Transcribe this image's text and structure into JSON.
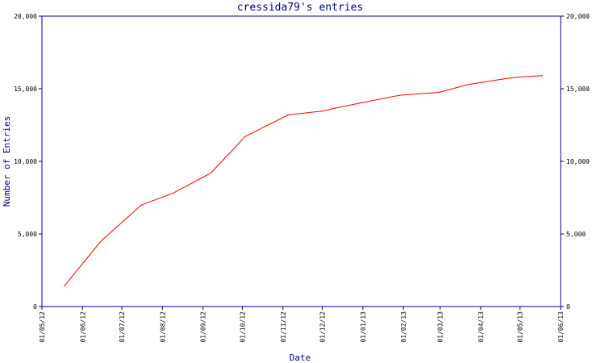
{
  "chart_data": {
    "type": "line",
    "title": "cressida79's entries",
    "xlabel": "Date",
    "ylabel": "Number of Entries",
    "x_tick_labels": [
      "01/05/12",
      "01/06/12",
      "01/07/12",
      "01/08/12",
      "01/09/12",
      "01/10/12",
      "01/11/12",
      "01/12/12",
      "01/01/13",
      "01/02/13",
      "01/03/13",
      "01/04/13",
      "01/05/13",
      "01/06/13"
    ],
    "y_tick_labels": [
      "0",
      "5,000",
      "10,000",
      "15,000",
      "20,000"
    ],
    "ylim": [
      0,
      20000
    ],
    "xlim": [
      "2012-05-01",
      "2013-06-01"
    ],
    "grid": false,
    "series": [
      {
        "color": "#ff0000",
        "points": [
          {
            "x": "2012-05-18",
            "y": 1400
          },
          {
            "x": "2012-06-15",
            "y": 4500
          },
          {
            "x": "2012-07-16",
            "y": 7000
          },
          {
            "x": "2012-08-09",
            "y": 7800
          },
          {
            "x": "2012-09-07",
            "y": 9200
          },
          {
            "x": "2012-10-03",
            "y": 11700
          },
          {
            "x": "2012-11-05",
            "y": 13200
          },
          {
            "x": "2012-11-30",
            "y": 13450
          },
          {
            "x": "2012-12-29",
            "y": 14000
          },
          {
            "x": "2013-01-29",
            "y": 14550
          },
          {
            "x": "2013-02-28",
            "y": 14750
          },
          {
            "x": "2013-03-23",
            "y": 15300
          },
          {
            "x": "2013-04-17",
            "y": 15650
          },
          {
            "x": "2013-04-29",
            "y": 15800
          },
          {
            "x": "2013-05-18",
            "y": 15900
          }
        ]
      }
    ]
  }
}
